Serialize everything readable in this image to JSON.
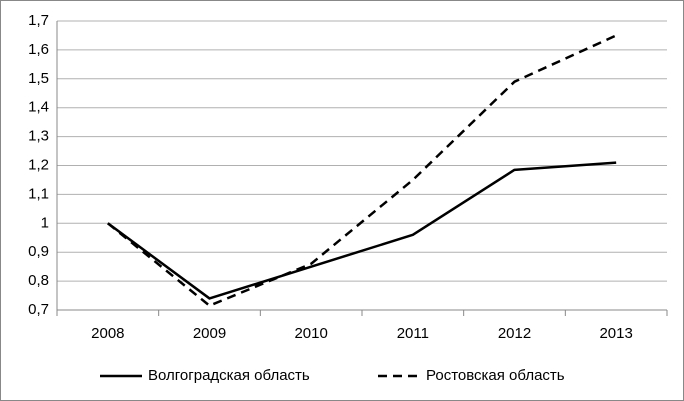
{
  "chart_data": {
    "type": "line",
    "categories": [
      "2008",
      "2009",
      "2010",
      "2011",
      "2012",
      "2013"
    ],
    "series": [
      {
        "name": "Волгоградская область",
        "color": "#000000",
        "dashed": false,
        "values": [
          1.0,
          0.74,
          0.85,
          0.96,
          1.185,
          1.21
        ]
      },
      {
        "name": "Ростовская область",
        "color": "#000000",
        "dashed": true,
        "values": [
          1.0,
          0.715,
          0.86,
          1.15,
          1.49,
          1.65
        ]
      }
    ],
    "ylim": [
      0.7,
      1.7
    ],
    "yticks": [
      {
        "value": 0.7,
        "label": "0,7"
      },
      {
        "value": 0.8,
        "label": "0,8"
      },
      {
        "value": 0.9,
        "label": "0,9"
      },
      1,
      {
        "value": 1.1,
        "label": "1,1"
      },
      {
        "value": 1.2,
        "label": "1,2"
      },
      {
        "value": 1.3,
        "label": "1,3"
      },
      {
        "value": 1.4,
        "label": "1,4"
      },
      {
        "value": 1.5,
        "label": "1,5"
      },
      {
        "value": 1.6,
        "label": "1,6"
      },
      {
        "value": 1.7,
        "label": "1,7"
      }
    ],
    "grid": true,
    "legend": "bottom"
  }
}
